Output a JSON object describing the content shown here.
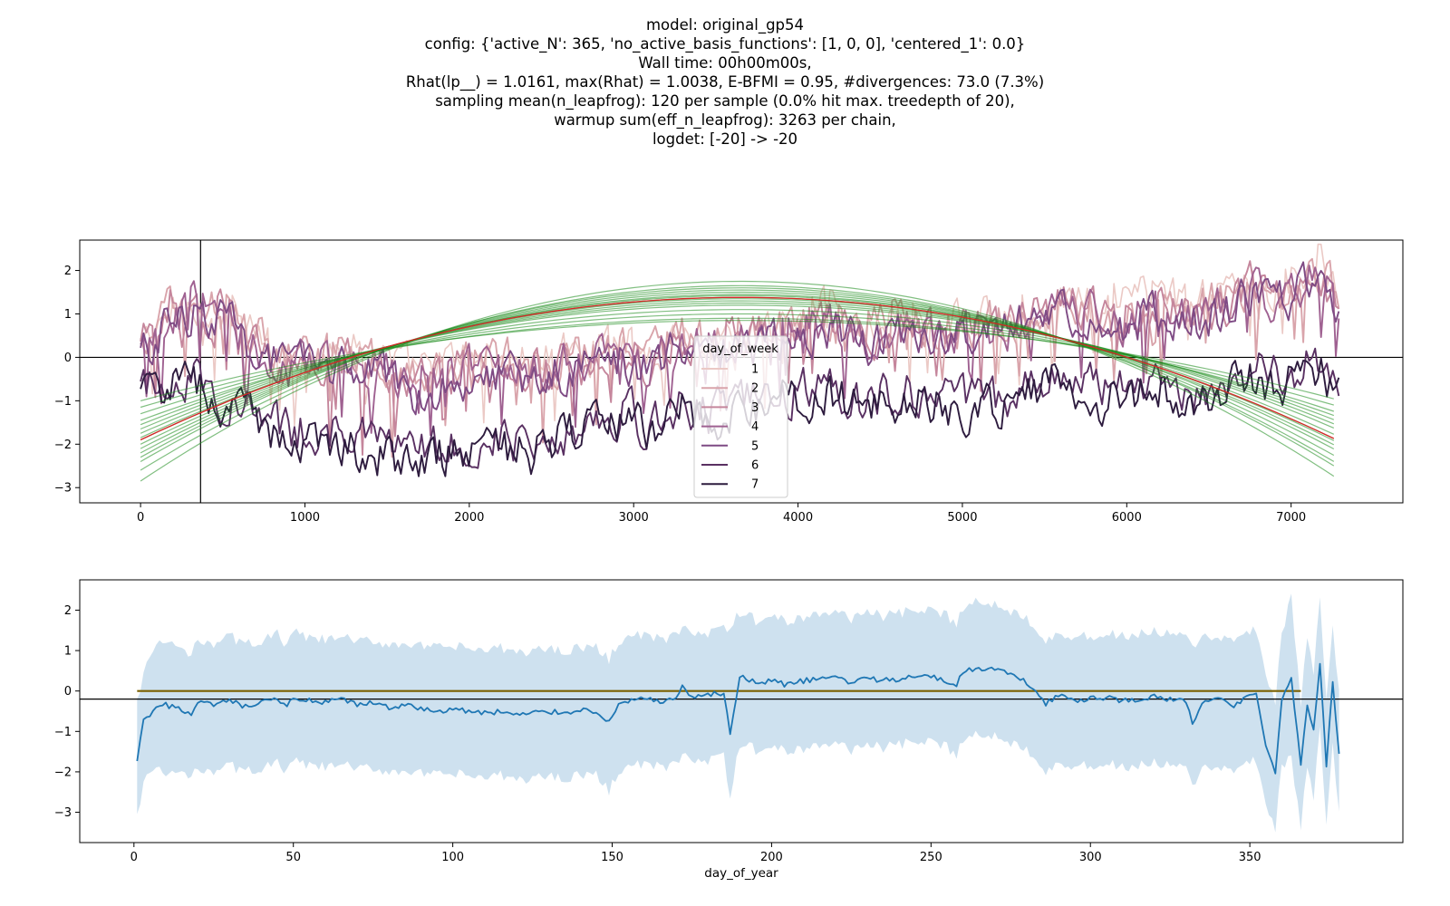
{
  "title": {
    "lines": [
      "model: original_gp54",
      "config: {'active_N': 365, 'no_active_basis_functions': [1, 0, 0], 'centered_1': 0.0}",
      "Wall time: 00h00m00s,",
      "Rhat(lp__) = 1.0161, max(Rhat) = 1.0038, E-BFMI = 0.95, #divergences: 73.0 (7.3%)",
      "sampling mean(n_leapfrog): 120 per sample (0.0% hit max. treedepth of 20),",
      "warmup sum(eff_n_leapfrog): 3263 per chain,",
      "logdet: [-20] -> -20"
    ]
  },
  "colors": {
    "day_of_week": [
      "#ebc9c5",
      "#d9a4ab",
      "#c5869c",
      "#9f6191",
      "#7e4a84",
      "#593062",
      "#2d1b3e"
    ],
    "trend_draws": "#1a8a1a",
    "trend_mean": "#d62728",
    "seasonal_line": "#1f77b4",
    "seasonal_band": "#aecde5",
    "flat_line": "#7a6000",
    "reference_line": "#000000"
  },
  "chart_data": [
    {
      "type": "line",
      "title": "",
      "xlabel": "",
      "ylabel": "",
      "xlim": [
        -370,
        7680
      ],
      "ylim": [
        -3.35,
        2.7
      ],
      "xticks": [
        "0",
        "1000",
        "2000",
        "3000",
        "4000",
        "5000",
        "6000",
        "7000"
      ],
      "xtick_values": [
        0,
        1000,
        2000,
        3000,
        4000,
        5000,
        6000,
        7000
      ],
      "yticks": [
        "2",
        "1",
        "0",
        "−1",
        "−2",
        "−3"
      ],
      "ytick_values": [
        2,
        1,
        0,
        -1,
        -2,
        -3
      ],
      "hline": 0,
      "vline": 365,
      "legend": {
        "title": "day_of_week",
        "entries": [
          "1",
          "2",
          "3",
          "4",
          "5",
          "6",
          "7"
        ],
        "placement": "center"
      },
      "series": [
        {
          "name": "1",
          "x_start": 0,
          "x_step": 182.5,
          "values": [
            0.2,
            1.0,
            1.3,
            0.9,
            0.4,
            -0.1,
            0.2,
            0.1,
            0.0,
            -0.3,
            -0.2,
            0.0,
            0.1,
            -0.2,
            0.1,
            0.2,
            0.4,
            0.1,
            0.6,
            0.2,
            0.5,
            0.6,
            0.8,
            1.1,
            0.7,
            1.0,
            0.9,
            0.8,
            0.8,
            0.9,
            1.3,
            1.4,
            1.1,
            1.2,
            1.5,
            1.2,
            1.4,
            1.8,
            1.6,
            2.2,
            1.7
          ]
        },
        {
          "name": "2",
          "x_start": 0,
          "x_step": 182.5,
          "values": [
            0.3,
            1.1,
            1.4,
            1.0,
            0.5,
            0.0,
            0.1,
            0.0,
            -0.2,
            -0.5,
            -0.3,
            -0.1,
            0.0,
            -0.3,
            0.0,
            0.1,
            0.3,
            0.0,
            0.5,
            0.3,
            0.6,
            0.5,
            0.7,
            1.0,
            0.6,
            0.8,
            0.8,
            0.7,
            0.7,
            0.9,
            1.2,
            1.4,
            1.0,
            1.1,
            1.4,
            1.1,
            1.3,
            1.7,
            1.5,
            2.0,
            1.6
          ]
        },
        {
          "name": "3",
          "x_start": 0,
          "x_step": 182.5,
          "values": [
            0.2,
            1.0,
            1.2,
            0.8,
            0.3,
            -0.2,
            0.0,
            -0.1,
            -0.3,
            -0.6,
            -0.4,
            -0.2,
            -0.1,
            -0.4,
            -0.1,
            0.0,
            0.2,
            -0.1,
            0.4,
            0.2,
            0.5,
            0.5,
            0.6,
            0.9,
            0.5,
            0.7,
            0.7,
            0.6,
            0.6,
            0.8,
            1.1,
            1.3,
            0.9,
            1.0,
            1.3,
            1.0,
            1.2,
            1.6,
            1.4,
            1.9,
            1.5
          ]
        },
        {
          "name": "4",
          "x_start": 0,
          "x_step": 182.5,
          "values": [
            0.1,
            0.9,
            1.2,
            0.8,
            0.2,
            -0.2,
            -0.1,
            -0.2,
            -0.3,
            -0.7,
            -0.5,
            -0.3,
            -0.2,
            -0.5,
            -0.2,
            -0.1,
            0.1,
            -0.2,
            0.3,
            0.1,
            0.4,
            0.4,
            0.6,
            0.8,
            0.4,
            0.6,
            0.6,
            0.5,
            0.5,
            0.7,
            1.0,
            1.2,
            0.8,
            0.9,
            1.2,
            0.9,
            1.1,
            1.5,
            1.3,
            1.8,
            1.4
          ]
        },
        {
          "name": "5",
          "x_start": 0,
          "x_step": 182.5,
          "values": [
            0.0,
            0.8,
            1.1,
            0.7,
            0.1,
            -0.3,
            -0.2,
            -0.3,
            -0.4,
            -0.8,
            -0.6,
            -0.4,
            -0.3,
            -0.6,
            -0.3,
            -0.2,
            0.0,
            -0.3,
            0.2,
            0.0,
            0.3,
            0.3,
            0.5,
            0.7,
            0.3,
            0.5,
            0.5,
            0.4,
            0.4,
            0.6,
            0.9,
            1.1,
            0.7,
            0.8,
            1.1,
            0.8,
            1.0,
            1.4,
            1.2,
            1.7,
            1.3
          ]
        },
        {
          "name": "6",
          "x_start": 0,
          "x_step": 182.5,
          "values": [
            -0.8,
            -0.4,
            -0.5,
            -1.0,
            -1.4,
            -1.7,
            -1.6,
            -1.8,
            -2.0,
            -2.2,
            -2.0,
            -1.9,
            -1.8,
            -2.0,
            -1.7,
            -1.5,
            -1.2,
            -1.6,
            -1.0,
            -1.3,
            -1.0,
            -0.9,
            -0.8,
            -0.6,
            -1.0,
            -0.8,
            -0.8,
            -1.0,
            -1.0,
            -0.9,
            -0.5,
            -0.3,
            -0.8,
            -0.7,
            -0.4,
            -0.8,
            -0.6,
            -0.3,
            -0.5,
            0.0,
            -0.5
          ]
        },
        {
          "name": "7",
          "x_start": 0,
          "x_step": 182.5,
          "values": [
            -1.0,
            -0.6,
            -0.7,
            -1.2,
            -1.6,
            -1.9,
            -1.8,
            -2.0,
            -2.3,
            -2.4,
            -2.3,
            -2.2,
            -2.0,
            -2.2,
            -1.9,
            -1.7,
            -1.4,
            -1.8,
            -1.2,
            -1.5,
            -1.2,
            -1.1,
            -1.0,
            -0.8,
            -1.2,
            -1.0,
            -1.0,
            -1.2,
            -1.2,
            -1.1,
            -0.7,
            -0.5,
            -1.0,
            -0.9,
            -0.6,
            -1.0,
            -0.8,
            -0.5,
            -0.7,
            -0.2,
            -0.7
          ]
        }
      ],
      "trend": {
        "x_range": [
          0,
          7305
        ],
        "mean": {
          "start": -1.9,
          "peak_x": 3650,
          "peak": 1.38,
          "end": -1.95
        },
        "draws": [
          {
            "start": -2.85,
            "peak": 1.75,
            "end": -2.85
          },
          {
            "start": -2.6,
            "peak": 1.65,
            "end": -2.6
          },
          {
            "start": -2.4,
            "peak": 1.6,
            "end": -2.5
          },
          {
            "start": -2.3,
            "peak": 1.55,
            "end": -2.35
          },
          {
            "start": -2.2,
            "peak": 1.5,
            "end": -2.2
          },
          {
            "start": -2.1,
            "peak": 1.45,
            "end": -2.1
          },
          {
            "start": -2.0,
            "peak": 1.42,
            "end": -2.0
          },
          {
            "start": -1.9,
            "peak": 1.38,
            "end": -1.95
          },
          {
            "start": -1.85,
            "peak": 1.35,
            "end": -1.85
          },
          {
            "start": -1.75,
            "peak": 1.3,
            "end": -1.7
          },
          {
            "start": -1.65,
            "peak": 1.25,
            "end": -1.6
          },
          {
            "start": -1.55,
            "peak": 1.2,
            "end": -1.5
          },
          {
            "start": -1.45,
            "peak": 1.1,
            "end": -1.4
          },
          {
            "start": -1.3,
            "peak": 1.0,
            "end": -1.3
          },
          {
            "start": -1.15,
            "peak": 0.9,
            "end": -1.15
          },
          {
            "start": -1.0,
            "peak": 0.85,
            "end": -1.0
          }
        ]
      }
    },
    {
      "type": "area",
      "title": "",
      "xlabel": "day_of_year",
      "ylabel": "",
      "xlim": [
        -17,
        398
      ],
      "ylim": [
        -3.75,
        2.75
      ],
      "xticks": [
        "0",
        "50",
        "100",
        "150",
        "200",
        "250",
        "300",
        "350"
      ],
      "xtick_values": [
        0,
        50,
        100,
        150,
        200,
        250,
        300,
        350
      ],
      "yticks": [
        "2",
        "1",
        "0",
        "−1",
        "−2",
        "−3"
      ],
      "ytick_values": [
        2,
        1,
        0,
        -1,
        -2,
        -3
      ],
      "hline": -0.2,
      "flat_line": {
        "x_range": [
          1,
          366
        ],
        "value": 0.0
      },
      "series": [
        {
          "name": "mean",
          "x": [
            1,
            3,
            6,
            10,
            15,
            18,
            20,
            25,
            30,
            35,
            40,
            45,
            48,
            50,
            55,
            60,
            65,
            70,
            75,
            80,
            85,
            90,
            95,
            100,
            105,
            110,
            115,
            120,
            125,
            130,
            135,
            140,
            145,
            149,
            152,
            155,
            160,
            165,
            170,
            172,
            175,
            180,
            185,
            187,
            190,
            195,
            200,
            205,
            210,
            215,
            220,
            225,
            230,
            235,
            240,
            245,
            250,
            255,
            258,
            260,
            265,
            270,
            275,
            280,
            283,
            286,
            290,
            295,
            300,
            305,
            310,
            315,
            320,
            325,
            330,
            332,
            335,
            340,
            345,
            350,
            352,
            355,
            358,
            360,
            363,
            366,
            368,
            370,
            372,
            374,
            376,
            378
          ],
          "values": [
            -1.75,
            -0.75,
            -0.5,
            -0.35,
            -0.45,
            -0.6,
            -0.3,
            -0.35,
            -0.25,
            -0.4,
            -0.3,
            -0.2,
            -0.4,
            -0.15,
            -0.25,
            -0.3,
            -0.2,
            -0.35,
            -0.3,
            -0.4,
            -0.35,
            -0.45,
            -0.5,
            -0.45,
            -0.5,
            -0.55,
            -0.5,
            -0.6,
            -0.55,
            -0.5,
            -0.55,
            -0.45,
            -0.5,
            -0.8,
            -0.3,
            -0.25,
            -0.15,
            -0.3,
            -0.2,
            0.15,
            -0.2,
            -0.1,
            -0.05,
            -1.05,
            0.35,
            0.2,
            0.25,
            0.15,
            0.25,
            0.3,
            0.35,
            0.2,
            0.35,
            0.25,
            0.3,
            0.4,
            0.35,
            0.25,
            0.1,
            0.5,
            0.55,
            0.55,
            0.4,
            0.2,
            0.05,
            -0.3,
            -0.1,
            -0.25,
            -0.2,
            -0.15,
            -0.25,
            -0.2,
            -0.15,
            -0.2,
            -0.25,
            -0.8,
            -0.3,
            -0.2,
            -0.4,
            -0.05,
            -0.1,
            -1.3,
            -2.05,
            -0.2,
            0.35,
            -1.85,
            -0.3,
            -1.0,
            0.65,
            -1.85,
            0.2,
            -1.55
          ]
        }
      ],
      "band": {
        "x": [
          1,
          3,
          6,
          10,
          15,
          18,
          20,
          25,
          30,
          35,
          40,
          45,
          48,
          50,
          55,
          60,
          65,
          70,
          75,
          80,
          85,
          90,
          95,
          100,
          105,
          110,
          115,
          120,
          125,
          130,
          135,
          140,
          145,
          149,
          152,
          155,
          160,
          165,
          170,
          172,
          175,
          180,
          185,
          187,
          190,
          195,
          200,
          205,
          210,
          215,
          220,
          225,
          230,
          235,
          240,
          245,
          250,
          255,
          258,
          260,
          265,
          270,
          275,
          280,
          283,
          286,
          290,
          295,
          300,
          305,
          310,
          315,
          320,
          325,
          330,
          332,
          335,
          340,
          345,
          350,
          352,
          355,
          358,
          360,
          363,
          366,
          368,
          370,
          372,
          374,
          376,
          378
        ],
        "upper": [
          -0.3,
          0.5,
          1.0,
          1.25,
          1.05,
          0.8,
          1.3,
          1.2,
          1.35,
          1.15,
          1.25,
          1.4,
          1.1,
          1.45,
          1.3,
          1.25,
          1.35,
          1.2,
          1.25,
          1.15,
          1.2,
          1.1,
          1.05,
          1.1,
          1.05,
          1.0,
          1.05,
          0.95,
          1.0,
          1.05,
          1.0,
          1.1,
          1.05,
          0.8,
          1.25,
          1.3,
          1.4,
          1.25,
          1.35,
          1.7,
          1.35,
          1.45,
          1.5,
          1.55,
          1.95,
          1.75,
          1.85,
          1.7,
          1.85,
          1.9,
          1.95,
          1.8,
          2.0,
          1.85,
          1.9,
          2.0,
          1.95,
          1.85,
          1.7,
          2.1,
          2.2,
          2.15,
          2.0,
          1.8,
          1.6,
          1.3,
          1.45,
          1.3,
          1.35,
          1.4,
          1.35,
          1.4,
          1.45,
          1.4,
          1.35,
          1.0,
          1.3,
          1.35,
          1.2,
          1.5,
          1.5,
          0.3,
          -0.3,
          1.4,
          2.35,
          -0.3,
          1.3,
          0.5,
          2.2,
          -0.3,
          1.5,
          -0.05
        ],
        "lower": [
          -3.15,
          -2.2,
          -1.95,
          -2.05,
          -2.0,
          -2.2,
          -1.9,
          -1.95,
          -1.85,
          -2.0,
          -1.9,
          -1.8,
          -2.0,
          -1.75,
          -1.85,
          -1.9,
          -1.8,
          -1.95,
          -1.9,
          -2.0,
          -1.95,
          -2.05,
          -2.1,
          -2.05,
          -2.1,
          -2.15,
          -2.1,
          -2.2,
          -2.15,
          -2.1,
          -2.15,
          -2.05,
          -2.1,
          -2.45,
          -1.95,
          -1.9,
          -1.8,
          -1.9,
          -1.85,
          -1.45,
          -1.8,
          -1.7,
          -1.65,
          -2.65,
          -1.3,
          -1.45,
          -1.4,
          -1.5,
          -1.4,
          -1.35,
          -1.3,
          -1.45,
          -1.3,
          -1.4,
          -1.35,
          -1.25,
          -1.3,
          -1.4,
          -1.55,
          -1.15,
          -1.1,
          -1.1,
          -1.25,
          -1.45,
          -1.6,
          -1.95,
          -1.75,
          -1.9,
          -1.85,
          -1.8,
          -1.9,
          -1.85,
          -1.8,
          -1.85,
          -1.9,
          -2.45,
          -1.95,
          -1.85,
          -2.05,
          -1.7,
          -1.75,
          -2.9,
          -3.45,
          -1.85,
          -1.65,
          -3.35,
          -1.9,
          -2.6,
          -1.0,
          -3.4,
          -1.4,
          -3.05
        ]
      }
    }
  ]
}
